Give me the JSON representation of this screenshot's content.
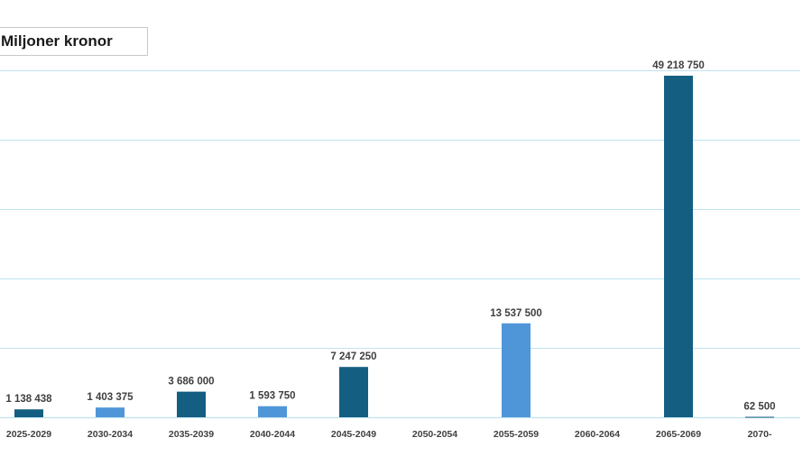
{
  "chart_data": {
    "type": "bar",
    "title": "",
    "unit_label": "Miljoner kronor",
    "categories": [
      "2025-2029",
      "2030-2034",
      "2035-2039",
      "2040-2044",
      "2045-2049",
      "2050-2054",
      "2055-2059",
      "2060-2064",
      "2065-2069",
      "2070-"
    ],
    "values": [
      1138438,
      1403375,
      3686000,
      1593750,
      7247250,
      0,
      13537500,
      0,
      49218750,
      62500
    ],
    "data_labels": [
      "1 138 438",
      "1 403 375",
      "3 686 000",
      "1 593 750",
      "7 247 250",
      "",
      "13 537 500",
      "",
      "49 218 750",
      "62 500"
    ],
    "bar_colors": [
      "#145e82",
      "#4f96d9",
      "#145e82",
      "#4f96d9",
      "#145e82",
      "#4f96d9",
      "#4f96d9",
      "#145e82",
      "#145e82",
      "#145e82"
    ],
    "ylim": [
      0,
      50000000
    ],
    "grid": true,
    "legend": "none",
    "xlabel": "",
    "ylabel": ""
  }
}
